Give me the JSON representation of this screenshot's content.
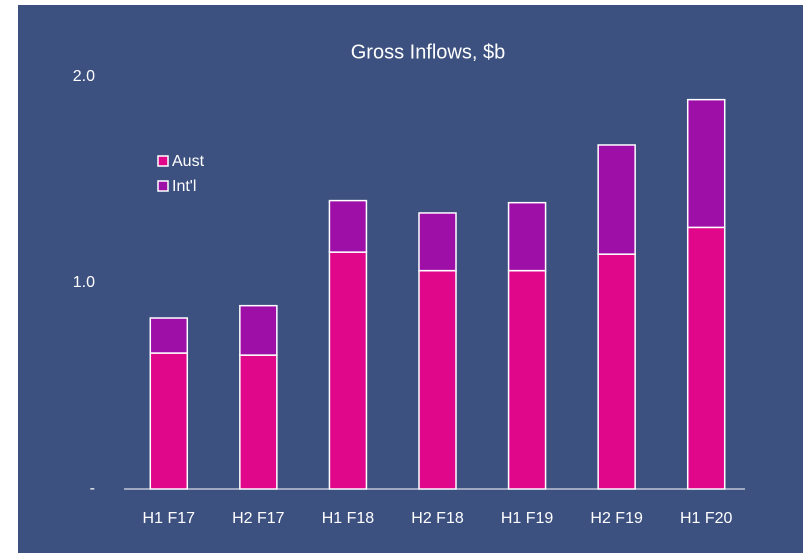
{
  "chart_data": {
    "type": "stacked_bar",
    "title": "Gross Inflows, $b",
    "categories": [
      "H1 F17",
      "H2 F17",
      "H1 F18",
      "H2 F18",
      "H1 F19",
      "H2 F19",
      "H1 F20"
    ],
    "series": [
      {
        "name": "Aust",
        "color": "#e0078a",
        "values": [
          0.66,
          0.65,
          1.15,
          1.06,
          1.06,
          1.14,
          1.27
        ]
      },
      {
        "name": "Int'l",
        "color": "#9e0fa8",
        "values": [
          0.17,
          0.24,
          0.25,
          0.28,
          0.33,
          0.53,
          0.62
        ]
      }
    ],
    "ylim": [
      0,
      2
    ],
    "yticks": [
      {
        "value": 0,
        "label": "-"
      },
      {
        "value": 1,
        "label": "1.0"
      },
      {
        "value": 2,
        "label": "2.0"
      }
    ],
    "legend": "upper left"
  }
}
